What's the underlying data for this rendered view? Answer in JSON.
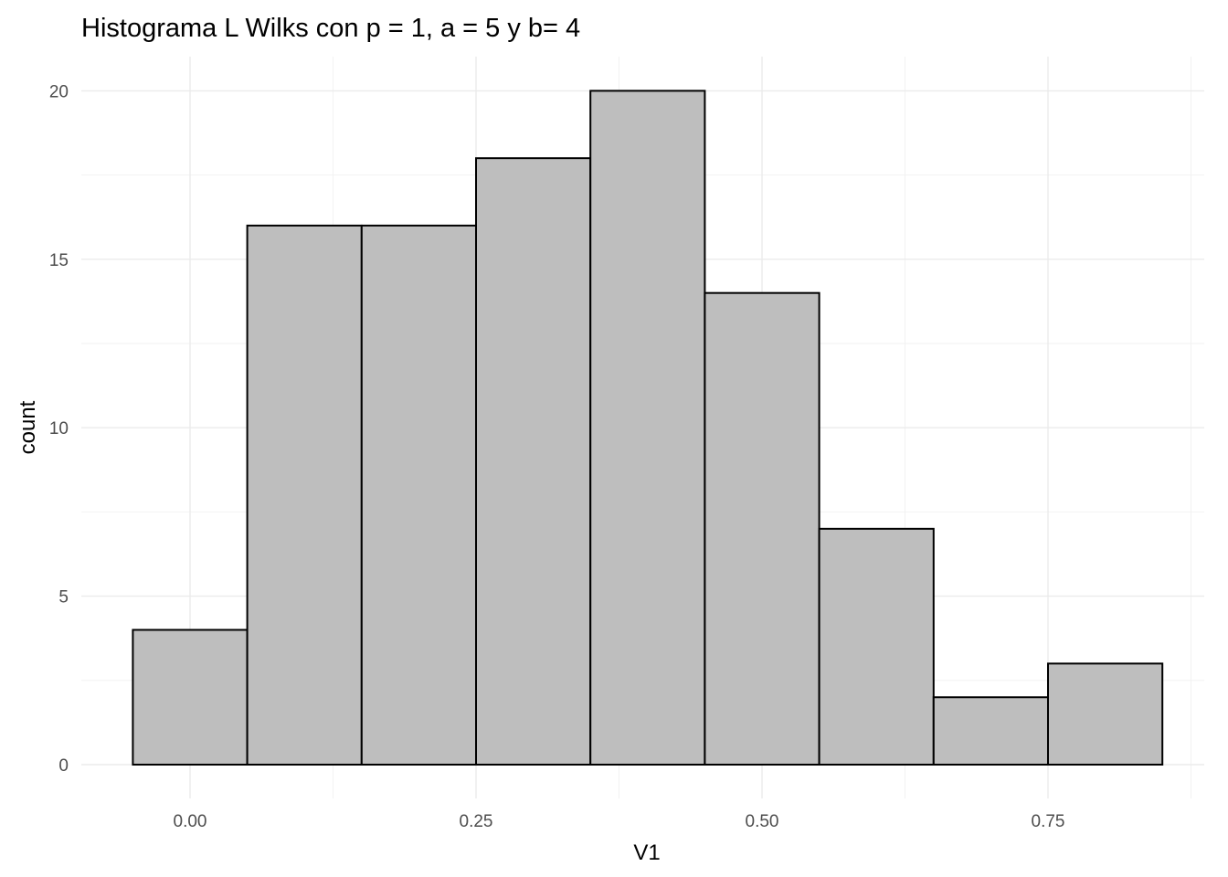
{
  "chart_data": {
    "type": "bar",
    "subtype": "histogram",
    "title": "Histograma L Wilks con p = 1, a = 5 y b= 4",
    "xlabel": "V1",
    "ylabel": "count",
    "xlim": [
      -0.1,
      0.88
    ],
    "ylim": [
      0,
      21
    ],
    "x_ticks": [
      {
        "value": 0.0,
        "label": "0.00"
      },
      {
        "value": 0.25,
        "label": "0.25"
      },
      {
        "value": 0.5,
        "label": "0.50"
      },
      {
        "value": 0.75,
        "label": "0.75"
      }
    ],
    "x_minor_ticks": [
      0.125,
      0.375,
      0.625,
      0.875
    ],
    "y_ticks": [
      {
        "value": 0,
        "label": "0"
      },
      {
        "value": 5,
        "label": "5"
      },
      {
        "value": 10,
        "label": "10"
      },
      {
        "value": 15,
        "label": "15"
      },
      {
        "value": 20,
        "label": "20"
      }
    ],
    "y_minor_ticks": [
      2.5,
      7.5,
      12.5,
      17.5
    ],
    "bins": [
      {
        "x0": -0.05,
        "x1": 0.05,
        "count": 4
      },
      {
        "x0": 0.05,
        "x1": 0.15,
        "count": 16
      },
      {
        "x0": 0.15,
        "x1": 0.25,
        "count": 16
      },
      {
        "x0": 0.25,
        "x1": 0.35,
        "count": 18
      },
      {
        "x0": 0.35,
        "x1": 0.45,
        "count": 20
      },
      {
        "x0": 0.45,
        "x1": 0.55,
        "count": 14
      },
      {
        "x0": 0.55,
        "x1": 0.65,
        "count": 7
      },
      {
        "x0": 0.65,
        "x1": 0.75,
        "count": 2
      },
      {
        "x0": 0.75,
        "x1": 0.85,
        "count": 3
      }
    ],
    "bar_fill": "#bebebe",
    "bar_outline": "#000000",
    "grid": true,
    "legend": "none"
  }
}
